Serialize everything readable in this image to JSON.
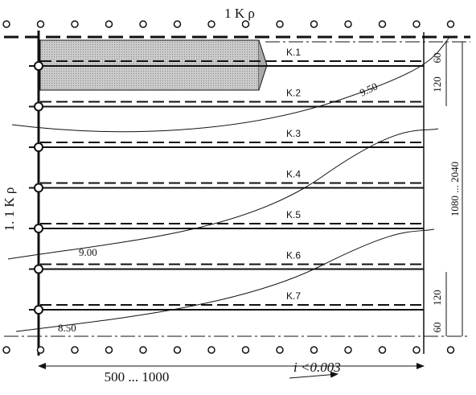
{
  "top_label": "1 K ρ",
  "left_label": "1. 1 K ρ",
  "channels": [
    "K.1",
    "K.2",
    "K.3",
    "K.4",
    "K.5",
    "K.6",
    "K.7"
  ],
  "contours": [
    "9.50",
    "9.00",
    "8.50"
  ],
  "right_dimensions": [
    "60",
    "120",
    "1080 ... 2040",
    "120",
    "60"
  ],
  "bottom_dimension": "500 ... 1000",
  "slope": "i <0.003"
}
